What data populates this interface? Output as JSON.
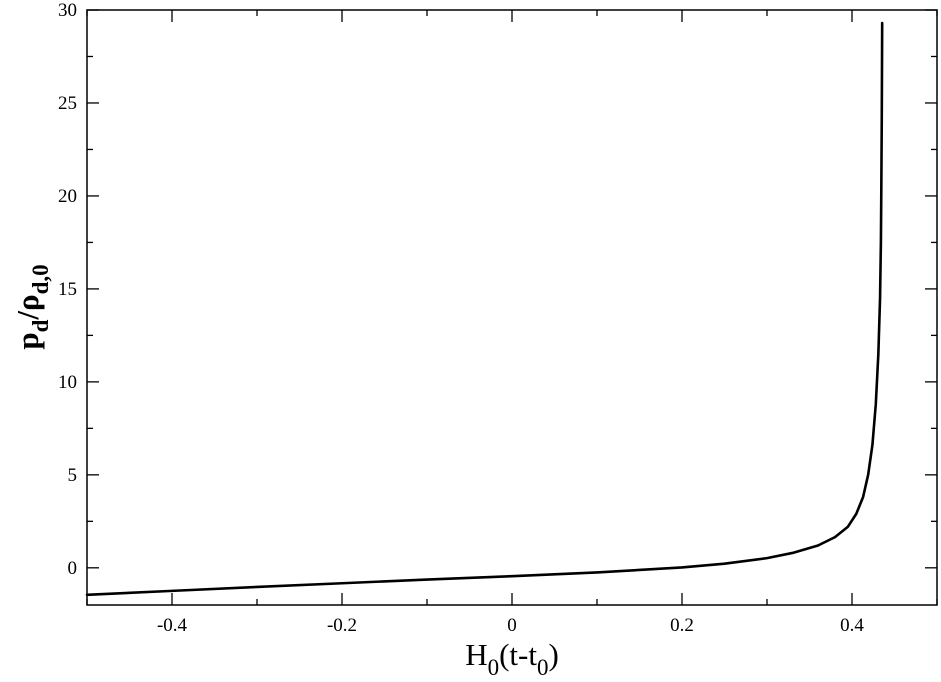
{
  "chart_data": {
    "type": "line",
    "title": "",
    "xlabel": {
      "main": "H",
      "sub1": "0",
      "mid": "(t-t",
      "sub2": "0",
      "end": ")"
    },
    "ylabel": {
      "main": "p",
      "sub1": "d",
      "mid": "/ρ",
      "sub2": "d,0"
    },
    "xlim": [
      -0.5,
      0.5
    ],
    "ylim": [
      -2,
      30
    ],
    "xticks": [
      -0.4,
      -0.2,
      0,
      0.2,
      0.4
    ],
    "xtick_labels": [
      "-0.4",
      "-0.2",
      "0",
      "0.2",
      "0.4"
    ],
    "yticks": [
      0,
      5,
      10,
      15,
      20,
      25,
      30
    ],
    "ytick_labels": [
      "0",
      "5",
      "10",
      "15",
      "20",
      "25",
      "30"
    ],
    "grid": false,
    "series": [
      {
        "color": "#000000",
        "x": [
          -0.5,
          -0.4,
          -0.3,
          -0.2,
          -0.1,
          0.0,
          0.1,
          0.2,
          0.25,
          0.3,
          0.33,
          0.36,
          0.38,
          0.395,
          0.405,
          0.413,
          0.419,
          0.424,
          0.428,
          0.431,
          0.433,
          0.434,
          0.4345,
          0.435,
          0.4353,
          0.4355
        ],
        "y": [
          -1.45,
          -1.24,
          -1.03,
          -0.83,
          -0.63,
          -0.45,
          -0.25,
          0.02,
          0.22,
          0.52,
          0.8,
          1.2,
          1.65,
          2.2,
          2.9,
          3.8,
          5.0,
          6.6,
          8.8,
          11.5,
          14.5,
          17.5,
          20.5,
          24.0,
          27.0,
          29.3
        ]
      }
    ]
  }
}
